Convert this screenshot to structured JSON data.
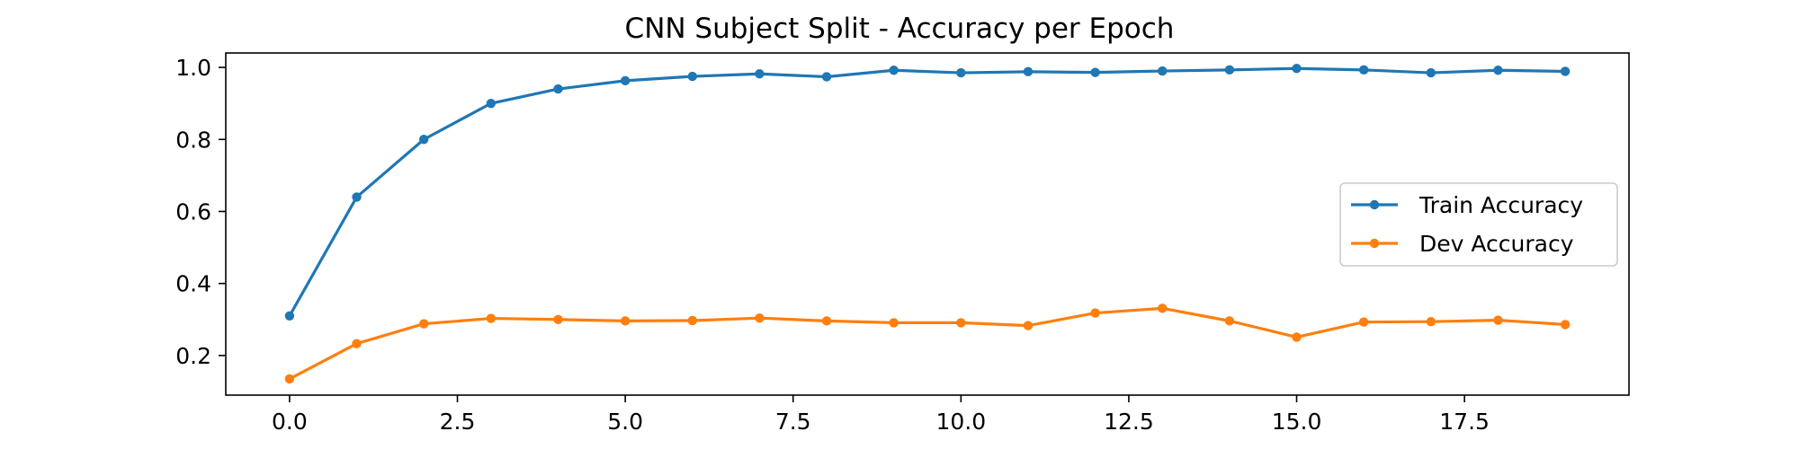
{
  "chart_data": {
    "type": "line",
    "title": "CNN Subject Split -  Accuracy per Epoch",
    "xlabel": "",
    "ylabel": "",
    "xlim": [
      -0.95,
      19.95
    ],
    "ylim": [
      0.09,
      1.04
    ],
    "x": [
      0,
      1,
      2,
      3,
      4,
      5,
      6,
      7,
      8,
      9,
      10,
      11,
      12,
      13,
      14,
      15,
      16,
      17,
      18,
      19
    ],
    "x_ticks": [
      {
        "value": 0.0,
        "label": "0.0"
      },
      {
        "value": 2.5,
        "label": "2.5"
      },
      {
        "value": 5.0,
        "label": "5.0"
      },
      {
        "value": 7.5,
        "label": "7.5"
      },
      {
        "value": 10.0,
        "label": "10.0"
      },
      {
        "value": 12.5,
        "label": "12.5"
      },
      {
        "value": 15.0,
        "label": "15.0"
      },
      {
        "value": 17.5,
        "label": "17.5"
      }
    ],
    "y_ticks": [
      {
        "value": 0.2,
        "label": "0.2"
      },
      {
        "value": 0.4,
        "label": "0.4"
      },
      {
        "value": 0.6,
        "label": "0.6"
      },
      {
        "value": 0.8,
        "label": "0.8"
      },
      {
        "value": 1.0,
        "label": "1.0"
      }
    ],
    "grid": false,
    "legend_position": "center-right",
    "series": [
      {
        "name": "Train Accuracy",
        "color": "#1f77b4",
        "values": [
          0.31,
          0.64,
          0.8,
          0.9,
          0.94,
          0.963,
          0.975,
          0.982,
          0.974,
          0.992,
          0.985,
          0.988,
          0.986,
          0.99,
          0.993,
          0.997,
          0.993,
          0.985,
          0.992,
          0.989
        ]
      },
      {
        "name": "Dev Accuracy",
        "color": "#ff7f0e",
        "values": [
          0.135,
          0.233,
          0.288,
          0.303,
          0.3,
          0.296,
          0.297,
          0.304,
          0.296,
          0.291,
          0.291,
          0.283,
          0.318,
          0.331,
          0.296,
          0.251,
          0.293,
          0.294,
          0.298,
          0.286
        ]
      }
    ]
  }
}
